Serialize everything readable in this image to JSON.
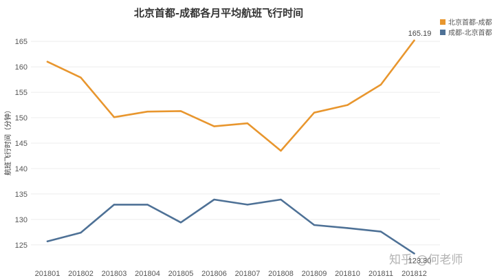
{
  "chart_data": {
    "type": "line",
    "title": "北京首都-成都各月平均航班飞行时间",
    "ylabel": "航班飞行时间（分钟）",
    "xlabel": "",
    "categories": [
      "201801",
      "201802",
      "201803",
      "201804",
      "201805",
      "201806",
      "201807",
      "201808",
      "201809",
      "201810",
      "201811",
      "201812"
    ],
    "ylim": [
      122,
      168
    ],
    "yticks": [
      125,
      130,
      135,
      140,
      145,
      150,
      155,
      160,
      165
    ],
    "grid": true,
    "legend_position": "top-right",
    "series": [
      {
        "name": "北京首都-成都",
        "color": "#E8962E",
        "values": [
          161.0,
          157.9,
          150.1,
          151.2,
          151.3,
          148.3,
          148.9,
          143.5,
          151.0,
          152.5,
          156.5,
          165.19
        ],
        "end_label": "165.19"
      },
      {
        "name": "成都-北京首都",
        "color": "#4E7196",
        "values": [
          125.7,
          127.4,
          132.9,
          132.9,
          129.4,
          133.9,
          132.9,
          133.9,
          128.9,
          128.3,
          127.6,
          123.3
        ],
        "end_label": "123.30"
      }
    ]
  },
  "watermark": {
    "text": "知乎 @何老师"
  }
}
